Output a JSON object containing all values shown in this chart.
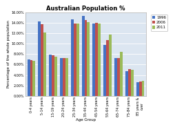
{
  "title": "Australian Population %",
  "xlabel": "Age Group",
  "ylabel": "Percentage of the whole population",
  "categories": [
    "0-4 years",
    "5-14 years",
    "15-19 years",
    "20-24 years",
    "25-34 years",
    "35-44 years",
    "45-54 years",
    "55-64 years",
    "65-74 years",
    "75-84 years",
    "85 years &\nover"
  ],
  "series": {
    "1996": [
      7.0,
      14.3,
      7.9,
      7.2,
      14.7,
      15.3,
      13.9,
      9.8,
      7.2,
      4.8,
      2.6
    ],
    "2006": [
      6.8,
      13.7,
      7.8,
      7.2,
      13.8,
      14.5,
      14.0,
      10.7,
      7.2,
      5.1,
      2.7
    ],
    "2011": [
      6.7,
      12.2,
      7.5,
      7.3,
      13.9,
      14.1,
      13.9,
      11.8,
      8.5,
      5.0,
      2.9
    ]
  },
  "colors": {
    "1996": "#4472C4",
    "2006": "#C0504D",
    "2011": "#9BBB59"
  },
  "ylim": [
    0,
    16
  ],
  "yticks": [
    0,
    2,
    4,
    6,
    8,
    10,
    12,
    14,
    16
  ],
  "ytick_labels": [
    "0.00%",
    "2.00%",
    "4.00%",
    "6.00%",
    "8.00%",
    "10.00%",
    "12.00%",
    "14.00%",
    "16.00%"
  ],
  "legend_labels": [
    "1996",
    "2006",
    "2011"
  ],
  "plot_bg_color": "#dce6f1",
  "fig_bg_color": "#ffffff",
  "title_fontsize": 6,
  "axis_label_fontsize": 4,
  "tick_fontsize": 3.5,
  "legend_fontsize": 4
}
